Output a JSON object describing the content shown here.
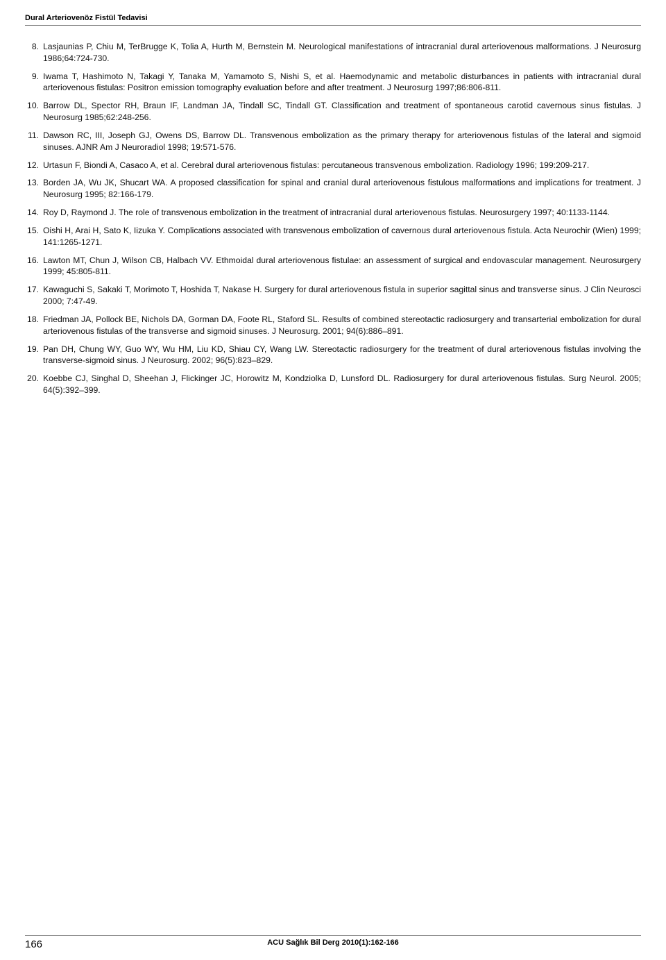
{
  "header_title": "Dural Arteriovenöz Fistül Tedavisi",
  "references": [
    {
      "n": "8.",
      "text": "Lasjaunias P, Chiu M, TerBrugge K, Tolia A, Hurth M, Bernstein M. Neurological manifestations of intracranial dural arteriovenous malformations. J Neurosurg 1986;64:724-730."
    },
    {
      "n": "9.",
      "text": "Iwama T, Hashimoto N, Takagi Y, Tanaka M, Yamamoto S, Nishi S, et al. Haemodynamic and metabolic disturbances in patients with intracranial dural arteriovenous fistulas: Positron emission tomography evaluation before and after treatment. J Neurosurg 1997;86:806-811."
    },
    {
      "n": "10.",
      "text": "Barrow DL, Spector RH, Braun IF, Landman JA, Tindall SC, Tindall GT. Classification and treatment of spontaneous carotid cavernous sinus fistulas. J Neurosurg 1985;62:248-256."
    },
    {
      "n": "11.",
      "text": "Dawson RC, III, Joseph GJ, Owens DS, Barrow DL. Transvenous embolization as the primary therapy for arteriovenous fistulas of the lateral and sigmoid sinuses. AJNR Am J Neuroradiol 1998; 19:571-576."
    },
    {
      "n": "12.",
      "text": "Urtasun F, Biondi A, Casaco A, et al. Cerebral dural arteriovenous fistulas: percutaneous transvenous embolization. Radiology 1996; 199:209-217."
    },
    {
      "n": "13.",
      "text": "Borden JA, Wu JK, Shucart WA. A proposed classification for spinal and cranial dural arteriovenous fistulous malformations and implications for treatment. J Neurosurg 1995; 82:166-179."
    },
    {
      "n": "14.",
      "text": "Roy D, Raymond J. The role of transvenous embolization in the treatment of intracranial dural arteriovenous fistulas. Neurosurgery 1997; 40:1133-1144."
    },
    {
      "n": "15.",
      "text": "Oishi H, Arai H, Sato K, Iizuka Y. Complications associated with transvenous embolization of cavernous dural arteriovenous fistula. Acta Neurochir (Wien) 1999; 141:1265-1271."
    },
    {
      "n": "16.",
      "text": "Lawton MT, Chun J, Wilson CB, Halbach VV. Ethmoidal dural arteriovenous fistulae: an assessment of surgical and endovascular management. Neurosurgery 1999; 45:805-811."
    },
    {
      "n": "17.",
      "text": "Kawaguchi S, Sakaki T, Morimoto T, Hoshida T, Nakase H. Surgery for dural arteriovenous fistula in superior sagittal sinus and transverse sinus. J Clin Neurosci 2000; 7:47-49."
    },
    {
      "n": "18.",
      "text": "Friedman JA, Pollock BE, Nichols DA, Gorman DA, Foote RL, Staford SL. Results of combined stereotactic radiosurgery and transarterial embolization for dural arteriovenous fistulas of the transverse and sigmoid sinuses. J Neurosurg. 2001; 94(6):886–891."
    },
    {
      "n": "19.",
      "text": "Pan DH, Chung WY, Guo WY, Wu HM, Liu KD, Shiau CY, Wang LW. Stereotactic radiosurgery for the treatment of dural arteriovenous fistulas involving the transverse-sigmoid sinus. J Neurosurg. 2002; 96(5):823–829."
    },
    {
      "n": "20.",
      "text": "Koebbe CJ, Singhal D, Sheehan J, Flickinger JC, Horowitz M, Kondziolka D, Lunsford DL. Radiosurgery for dural arteriovenous fistulas. Surg Neurol. 2005; 64(5):392–399."
    }
  ],
  "page_number": "166",
  "journal_info": "ACU Sağlık Bil Derg 2010(1):162-166"
}
